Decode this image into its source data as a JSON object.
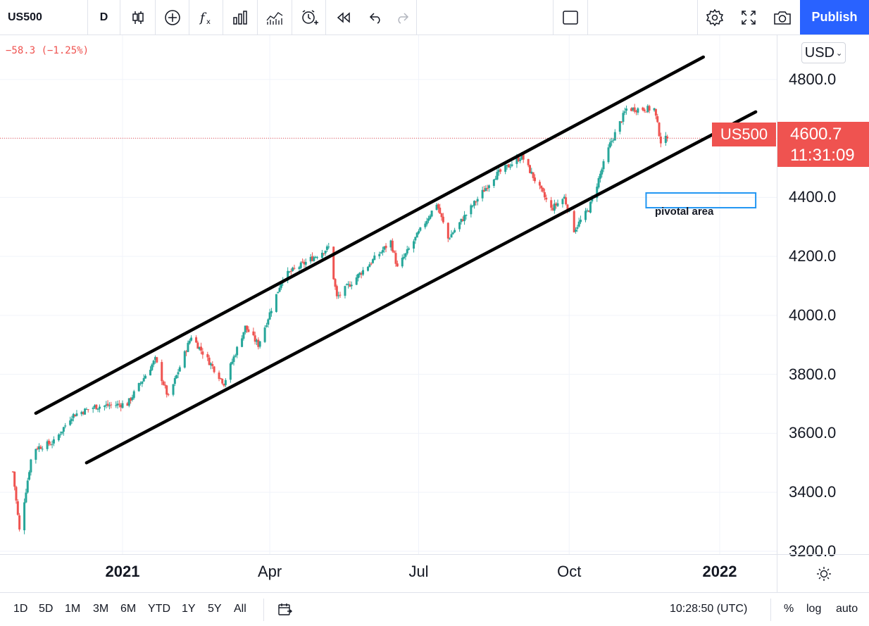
{
  "toolbar": {
    "symbol": "US500",
    "interval": "D",
    "publish_label": "Publish",
    "icons": [
      "candles-icon",
      "add-indicator-icon",
      "fx-icon",
      "bar-chart-icon",
      "compare-icon",
      "alert-icon",
      "replay-icon",
      "undo-icon",
      "redo-icon",
      "layout-icon",
      "settings-icon",
      "fullscreen-icon",
      "camera-icon"
    ]
  },
  "chart": {
    "change_text": "−58.3 (−1.25%)",
    "annotation": "pivotal area",
    "up_color": "#26a69a",
    "down_color": "#ef5350",
    "trendline_color": "#000000",
    "box_color": "#2196f3",
    "last_price_line_color": "#ef5350",
    "chart_data": {
      "type": "candlestick",
      "symbol": "US500",
      "timeframe": "1D",
      "ylim": [
        3190,
        4950
      ],
      "ytick_labels": [
        "4800.0",
        "4600.0",
        "4400.0",
        "4200.0",
        "4000.0",
        "3800.0",
        "3600.0",
        "3400.0",
        "3200.0"
      ],
      "yticks": [
        4800,
        4600,
        4400,
        4200,
        4000,
        3800,
        3600,
        3400,
        3200
      ],
      "xtick_labels": [
        "2021",
        "Apr",
        "Jul",
        "Oct",
        "2022"
      ],
      "xtick_bold": [
        true,
        false,
        false,
        false,
        true
      ],
      "last_price": 4600.7,
      "grid": true,
      "anchors": [
        {
          "date": "2020-10-26",
          "close": 3470
        },
        {
          "date": "2020-10-30",
          "close": 3270
        },
        {
          "date": "2020-11-06",
          "close": 3510
        },
        {
          "date": "2020-11-09",
          "close": 3550
        },
        {
          "date": "2020-11-20",
          "close": 3570
        },
        {
          "date": "2020-12-01",
          "close": 3660
        },
        {
          "date": "2020-12-15",
          "close": 3690
        },
        {
          "date": "2021-01-04",
          "close": 3700
        },
        {
          "date": "2021-01-21",
          "close": 3850
        },
        {
          "date": "2021-01-29",
          "close": 3720
        },
        {
          "date": "2021-02-12",
          "close": 3930
        },
        {
          "date": "2021-03-04",
          "close": 3770
        },
        {
          "date": "2021-03-17",
          "close": 3960
        },
        {
          "date": "2021-03-25",
          "close": 3900
        },
        {
          "date": "2021-04-09",
          "close": 4130
        },
        {
          "date": "2021-05-07",
          "close": 4230
        },
        {
          "date": "2021-05-12",
          "close": 4060
        },
        {
          "date": "2021-06-14",
          "close": 4250
        },
        {
          "date": "2021-06-18",
          "close": 4160
        },
        {
          "date": "2021-07-12",
          "close": 4380
        },
        {
          "date": "2021-07-19",
          "close": 4260
        },
        {
          "date": "2021-08-16",
          "close": 4470
        },
        {
          "date": "2021-09-02",
          "close": 4540
        },
        {
          "date": "2021-09-20",
          "close": 4360
        },
        {
          "date": "2021-09-28",
          "close": 4400
        },
        {
          "date": "2021-10-04",
          "close": 4290
        },
        {
          "date": "2021-10-13",
          "close": 4360
        },
        {
          "date": "2021-10-26",
          "close": 4580
        },
        {
          "date": "2021-11-05",
          "close": 4700
        },
        {
          "date": "2021-11-22",
          "close": 4700
        },
        {
          "date": "2021-11-26",
          "close": 4590
        },
        {
          "date": "2021-11-30",
          "close": 4600.7
        }
      ],
      "trendlines": [
        {
          "name": "upper-channel",
          "points": [
            {
              "date": "2020-11-09",
              "price": 3668
            },
            {
              "date": "2021-12-22",
              "price": 4876
            }
          ]
        },
        {
          "name": "lower-channel",
          "points": [
            {
              "date": "2020-12-10",
              "price": 3500
            },
            {
              "date": "2022-01-23",
              "price": 4690
            }
          ]
        }
      ],
      "rectangle": {
        "name": "pivotal-area",
        "from": "2021-11-17",
        "to": "2022-01-23",
        "top": 4415,
        "bottom": 4365
      }
    }
  },
  "price_axis": {
    "currency": "USD",
    "last_price_label": "4600.7",
    "countdown": "11:31:09",
    "symbol_tag": "US500"
  },
  "bottom": {
    "ranges": [
      "1D",
      "5D",
      "1M",
      "3M",
      "6M",
      "YTD",
      "1Y",
      "5Y",
      "All"
    ],
    "time": "10:28:50 (UTC)",
    "percent": "%",
    "log": "log",
    "auto": "auto"
  }
}
